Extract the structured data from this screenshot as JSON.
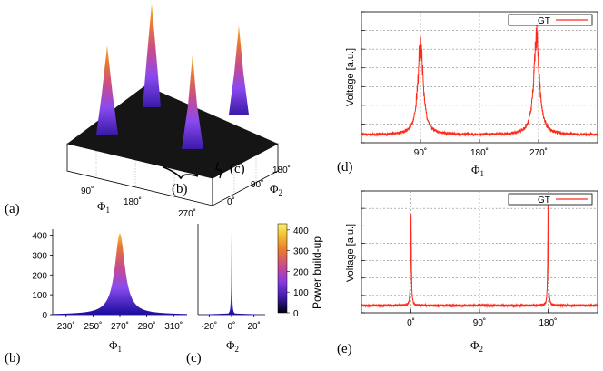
{
  "figure": {
    "panel_labels": {
      "a": "(a)",
      "b": "(b)",
      "c": "(c)",
      "d": "(d)",
      "e": "(e)",
      "b_inset": "(b)",
      "c_inset": "(c)"
    }
  },
  "colors": {
    "red": "#ff2a1a",
    "grid": "#888888",
    "plane": "#151515"
  },
  "chart_data": [
    {
      "id": "a",
      "type": "surface3d",
      "x_label_main": "Φ",
      "x_label_sub": "1",
      "y_label_main": "Φ",
      "y_label_sub": "2",
      "x_ticks": [
        "90˚",
        "180˚",
        "270˚"
      ],
      "y_ticks": [
        "0˚",
        "90˚",
        "180˚"
      ],
      "peaks": [
        {
          "phi1": 90,
          "phi2": 0
        },
        {
          "phi1": 270,
          "phi2": 0
        },
        {
          "phi1": 90,
          "phi2": 180
        },
        {
          "phi1": 270,
          "phi2": 180
        }
      ]
    },
    {
      "id": "b",
      "type": "area",
      "x_label_main": "Φ",
      "x_label_sub": "1",
      "x_ticks": [
        "230˚",
        "250˚",
        "270˚",
        "290˚",
        "310˚"
      ],
      "x_tick_values": [
        230,
        250,
        270,
        290,
        310
      ],
      "xlim": [
        220,
        320
      ],
      "y_ticks": [
        "0",
        "100",
        "200",
        "300",
        "400"
      ],
      "y_tick_values": [
        0,
        100,
        200,
        300,
        400
      ],
      "ylim": [
        0,
        430
      ],
      "peak": {
        "center": 270,
        "height": 410,
        "width": 4.5
      }
    },
    {
      "id": "c",
      "type": "area",
      "x_label_main": "Φ",
      "x_label_sub": "2",
      "x_ticks": [
        "-20˚",
        "0˚",
        "20˚"
      ],
      "x_tick_values": [
        -20,
        0,
        20
      ],
      "xlim": [
        -30,
        30
      ],
      "ylim": [
        0,
        430
      ],
      "peak": {
        "center": 0,
        "height": 410,
        "width": 0.35
      }
    },
    {
      "id": "colorbar",
      "type": "colorbar",
      "label": "Power build-up",
      "ticks": [
        "0",
        "100",
        "200",
        "300",
        "400"
      ],
      "tick_values": [
        0,
        100,
        200,
        300,
        400
      ],
      "range": [
        0,
        430
      ],
      "stops": [
        "#000010",
        "#3a1aa8",
        "#8a3be0",
        "#c84a90",
        "#e87830",
        "#f0c030",
        "#fff070"
      ]
    },
    {
      "id": "d",
      "type": "line",
      "legend": "GT",
      "ylabel": "Voltage [a.u.]",
      "x_label_main": "Φ",
      "x_label_sub": "1",
      "x_ticks": [
        "90˚",
        "180˚",
        "270˚"
      ],
      "x_tick_values": [
        90,
        180,
        270
      ],
      "xlim": [
        0,
        360
      ],
      "ylim": [
        0,
        1
      ],
      "baseline": 0.06,
      "peaks": [
        {
          "center": 90,
          "height": 0.78,
          "width": 5
        },
        {
          "center": 267,
          "height": 0.86,
          "width": 5
        }
      ]
    },
    {
      "id": "e",
      "type": "line",
      "legend": "GT",
      "ylabel": "Voltage [a.u.]",
      "x_label_main": "Φ",
      "x_label_sub": "2",
      "x_ticks": [
        "0˚",
        "90˚",
        "180˚"
      ],
      "x_tick_values": [
        0,
        90,
        180
      ],
      "xlim": [
        -65,
        245
      ],
      "ylim": [
        0,
        1
      ],
      "baseline": 0.06,
      "peaks": [
        {
          "center": 0,
          "height": 0.86,
          "width": 0.6
        },
        {
          "center": 180,
          "height": 0.86,
          "width": 0.6
        }
      ]
    }
  ]
}
